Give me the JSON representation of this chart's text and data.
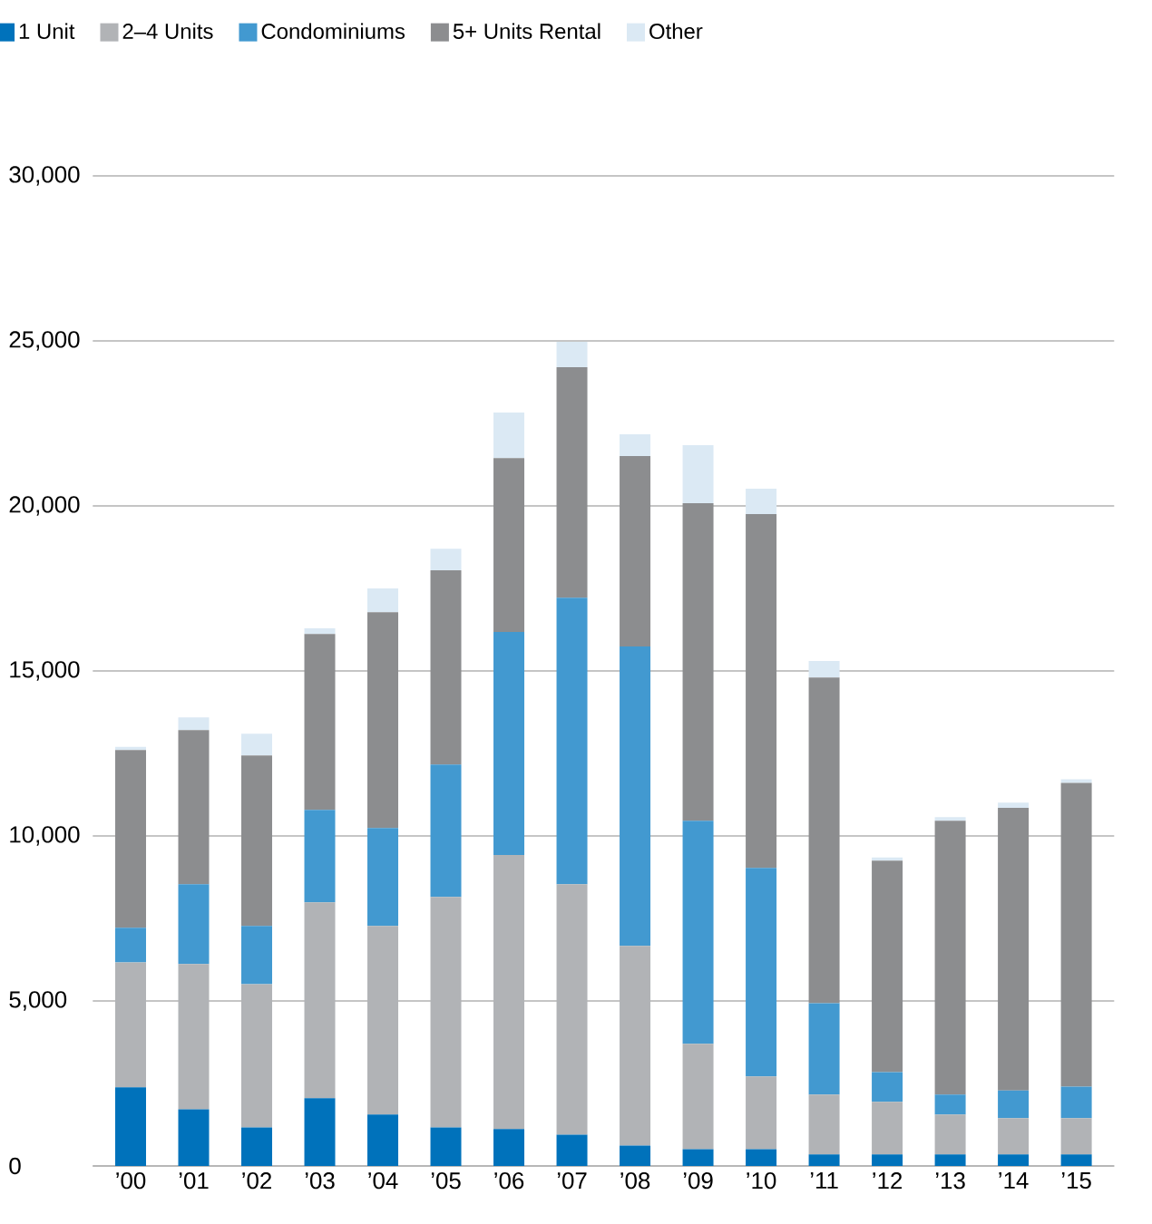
{
  "chart_data": {
    "type": "bar",
    "stacked": true,
    "categories": [
      "’00",
      "’01",
      "’02",
      "’03",
      "’04",
      "’05",
      "’06",
      "’07",
      "’08",
      "’09",
      "’10",
      "’11",
      "’12",
      "’13",
      "’14",
      "’15"
    ],
    "series": [
      {
        "name": "1 Unit",
        "color": "#0072bb",
        "values": [
          2380,
          1720,
          1170,
          2050,
          1560,
          1170,
          1120,
          950,
          620,
          510,
          510,
          350,
          350,
          350,
          350,
          350
        ]
      },
      {
        "name": "2–4 Units",
        "color": "#b1b3b6",
        "values": [
          3790,
          4400,
          4340,
          5940,
          5710,
          6980,
          8300,
          7590,
          6050,
          3190,
          2200,
          1810,
          1590,
          1210,
          1100,
          1100
        ]
      },
      {
        "name": "Condominiums",
        "color": "#4299d0",
        "values": [
          1050,
          2420,
          1760,
          2800,
          2970,
          4010,
          6760,
          8680,
          9070,
          6760,
          6320,
          2770,
          900,
          600,
          840,
          950
        ]
      },
      {
        "name": "5+ Units Rental",
        "color": "#8c8d8f",
        "values": [
          5380,
          4670,
          5170,
          5330,
          6540,
          5890,
          5270,
          6980,
          5770,
          9620,
          10720,
          9870,
          6410,
          8300,
          8560,
          9210
        ]
      },
      {
        "name": "Other",
        "color": "#dbe9f4",
        "values": [
          100,
          380,
          660,
          170,
          720,
          650,
          1380,
          770,
          660,
          1760,
          770,
          500,
          100,
          110,
          160,
          110
        ]
      }
    ],
    "ylim": [
      0,
      30000
    ],
    "yticks": [
      {
        "value": 0,
        "label": "0"
      },
      {
        "value": 5000,
        "label": "5,000"
      },
      {
        "value": 10000,
        "label": "10,000"
      },
      {
        "value": 15000,
        "label": "15,000"
      },
      {
        "value": 20000,
        "label": "20,000"
      },
      {
        "value": 25000,
        "label": "25,000"
      },
      {
        "value": 30000,
        "label": "30,000"
      }
    ],
    "grid": "y",
    "legend": "top left"
  }
}
